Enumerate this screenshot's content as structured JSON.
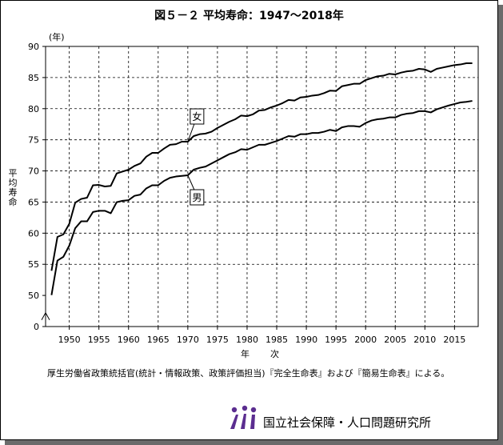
{
  "title": "図５－２  平均寿命：1947～2018年",
  "source_note": "厚生労働省政策統括官(統計・情報政策、政策評価担当)『完全生命表』および『簡易生命表』による。",
  "organization": "国立社会保障・人口問題研究所",
  "chart_data": {
    "type": "line",
    "title": "図５－２  平均寿命：1947～2018年",
    "xlabel": "年次",
    "ylabel": "平均寿命",
    "y_unit": "(年)",
    "xlim": [
      1946,
      2019
    ],
    "ylim": [
      45,
      90
    ],
    "y_axis_break": true,
    "x_ticks": [
      1950,
      1955,
      1960,
      1965,
      1970,
      1975,
      1980,
      1985,
      1990,
      1995,
      2000,
      2005,
      2010,
      2015
    ],
    "y_ticks": [
      0,
      50,
      55,
      60,
      65,
      70,
      75,
      80,
      85,
      90
    ],
    "grid": true,
    "series": [
      {
        "name": "女",
        "x": [
          1947,
          1948,
          1949,
          1950,
          1951,
          1952,
          1953,
          1954,
          1955,
          1956,
          1957,
          1958,
          1959,
          1960,
          1961,
          1962,
          1963,
          1964,
          1965,
          1966,
          1967,
          1968,
          1969,
          1970,
          1971,
          1972,
          1973,
          1974,
          1975,
          1976,
          1977,
          1978,
          1979,
          1980,
          1981,
          1982,
          1983,
          1984,
          1985,
          1986,
          1987,
          1988,
          1989,
          1990,
          1991,
          1992,
          1993,
          1994,
          1995,
          1996,
          1997,
          1998,
          1999,
          2000,
          2001,
          2002,
          2003,
          2004,
          2005,
          2006,
          2007,
          2008,
          2009,
          2010,
          2011,
          2012,
          2013,
          2014,
          2015,
          2016,
          2017,
          2018
        ],
        "values": [
          53.96,
          59.4,
          59.8,
          61.5,
          64.9,
          65.5,
          65.7,
          67.7,
          67.75,
          67.5,
          67.6,
          69.6,
          69.9,
          70.2,
          70.8,
          71.2,
          72.3,
          72.9,
          72.9,
          73.6,
          74.2,
          74.3,
          74.7,
          74.7,
          75.6,
          75.9,
          76.0,
          76.3,
          76.9,
          77.4,
          77.9,
          78.3,
          78.9,
          78.8,
          79.1,
          79.7,
          79.8,
          80.2,
          80.5,
          80.9,
          81.4,
          81.3,
          81.8,
          81.9,
          82.1,
          82.2,
          82.5,
          82.9,
          82.85,
          83.6,
          83.8,
          84.0,
          84.0,
          84.6,
          84.9,
          85.2,
          85.3,
          85.6,
          85.5,
          85.8,
          86.0,
          86.1,
          86.4,
          86.3,
          85.9,
          86.4,
          86.6,
          86.8,
          87.0,
          87.1,
          87.3,
          87.3
        ]
      },
      {
        "name": "男",
        "x": [
          1947,
          1948,
          1949,
          1950,
          1951,
          1952,
          1953,
          1954,
          1955,
          1956,
          1957,
          1958,
          1959,
          1960,
          1961,
          1962,
          1963,
          1964,
          1965,
          1966,
          1967,
          1968,
          1969,
          1970,
          1971,
          1972,
          1973,
          1974,
          1975,
          1976,
          1977,
          1978,
          1979,
          1980,
          1981,
          1982,
          1983,
          1984,
          1985,
          1986,
          1987,
          1988,
          1989,
          1990,
          1991,
          1992,
          1993,
          1994,
          1995,
          1996,
          1997,
          1998,
          1999,
          2000,
          2001,
          2002,
          2003,
          2004,
          2005,
          2006,
          2007,
          2008,
          2009,
          2010,
          2011,
          2012,
          2013,
          2014,
          2015,
          2016,
          2017,
          2018
        ],
        "values": [
          50.06,
          55.6,
          56.2,
          58.0,
          60.8,
          61.9,
          61.9,
          63.4,
          63.6,
          63.6,
          63.2,
          64.98,
          65.2,
          65.3,
          66.0,
          66.2,
          67.2,
          67.7,
          67.7,
          68.4,
          68.9,
          69.1,
          69.2,
          69.3,
          70.2,
          70.5,
          70.7,
          71.2,
          71.7,
          72.2,
          72.7,
          73.0,
          73.5,
          73.4,
          73.8,
          74.2,
          74.2,
          74.5,
          74.8,
          75.2,
          75.6,
          75.5,
          75.9,
          75.9,
          76.1,
          76.1,
          76.3,
          76.6,
          76.4,
          77.0,
          77.2,
          77.2,
          77.1,
          77.7,
          78.1,
          78.3,
          78.4,
          78.6,
          78.6,
          79.0,
          79.2,
          79.3,
          79.6,
          79.6,
          79.4,
          79.9,
          80.2,
          80.5,
          80.75,
          81.0,
          81.1,
          81.25
        ]
      }
    ],
    "annotations": [
      "女",
      "男"
    ]
  }
}
